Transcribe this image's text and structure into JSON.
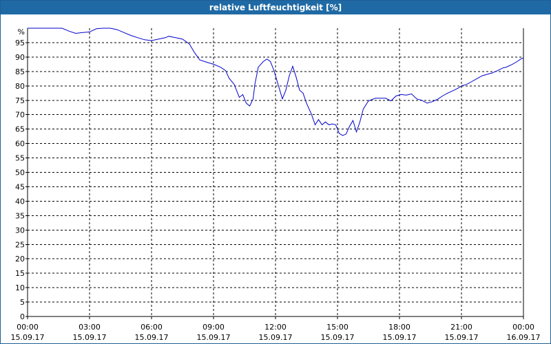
{
  "window": {
    "title": "relative Luftfeuchtigkeit [%]"
  },
  "chart_data": {
    "type": "line",
    "title": "relative Luftfeuchtigkeit [%]",
    "ylabel": "%",
    "xlabel": "",
    "ylim": [
      0,
      100
    ],
    "xlim_hours": [
      0,
      24
    ],
    "grid": true,
    "grid_style": "dashed",
    "line_color": "#0000cc",
    "y_ticks": [
      0,
      5,
      10,
      15,
      20,
      25,
      30,
      35,
      40,
      45,
      50,
      55,
      60,
      65,
      70,
      75,
      80,
      85,
      90,
      95
    ],
    "y_unit_label": "%",
    "x_ticks": [
      {
        "time": "00:00",
        "date": "15.09.17"
      },
      {
        "time": "03:00",
        "date": "15.09.17"
      },
      {
        "time": "06:00",
        "date": "15.09.17"
      },
      {
        "time": "09:00",
        "date": "15.09.17"
      },
      {
        "time": "12:00",
        "date": "15.09.17"
      },
      {
        "time": "15:00",
        "date": "15.09.17"
      },
      {
        "time": "18:00",
        "date": "15.09.17"
      },
      {
        "time": "21:00",
        "date": "15.09.17"
      },
      {
        "time": "00:00",
        "date": "16.09.17"
      }
    ],
    "series": [
      {
        "points": [
          {
            "x": "15.09.17 00:00",
            "y": 100
          },
          {
            "x": "15.09.17 01:00",
            "y": 100
          },
          {
            "x": "15.09.17 01:40",
            "y": 100
          },
          {
            "x": "15.09.17 02:00",
            "y": 99
          },
          {
            "x": "15.09.17 02:20",
            "y": 98.2
          },
          {
            "x": "15.09.17 02:40",
            "y": 98.5
          },
          {
            "x": "15.09.17 03:00",
            "y": 98.7
          },
          {
            "x": "15.09.17 03:20",
            "y": 99.8
          },
          {
            "x": "15.09.17 03:40",
            "y": 100
          },
          {
            "x": "15.09.17 04:00",
            "y": 100
          },
          {
            "x": "15.09.17 04:20",
            "y": 99.5
          },
          {
            "x": "15.09.17 04:40",
            "y": 98.5
          },
          {
            "x": "15.09.17 05:00",
            "y": 97.5
          },
          {
            "x": "15.09.17 05:20",
            "y": 96.7
          },
          {
            "x": "15.09.17 05:40",
            "y": 96
          },
          {
            "x": "15.09.17 06:00",
            "y": 95.7
          },
          {
            "x": "15.09.17 06:20",
            "y": 96.2
          },
          {
            "x": "15.09.17 06:40",
            "y": 96.7
          },
          {
            "x": "15.09.17 06:50",
            "y": 97.2
          },
          {
            "x": "15.09.17 07:10",
            "y": 96.7
          },
          {
            "x": "15.09.17 07:30",
            "y": 96.2
          },
          {
            "x": "15.09.17 07:50",
            "y": 94.5
          },
          {
            "x": "15.09.17 08:05",
            "y": 91.5
          },
          {
            "x": "15.09.17 08:20",
            "y": 89
          },
          {
            "x": "15.09.17 08:40",
            "y": 88.2
          },
          {
            "x": "15.09.17 09:00",
            "y": 87.5
          },
          {
            "x": "15.09.17 09:20",
            "y": 86.5
          },
          {
            "x": "15.09.17 09:35",
            "y": 85.3
          },
          {
            "x": "15.09.17 09:45",
            "y": 82.7
          },
          {
            "x": "15.09.17 10:00",
            "y": 80.5
          },
          {
            "x": "15.09.17 10:10",
            "y": 77.5
          },
          {
            "x": "15.09.17 10:15",
            "y": 76
          },
          {
            "x": "15.09.17 10:25",
            "y": 77
          },
          {
            "x": "15.09.17 10:35",
            "y": 74
          },
          {
            "x": "15.09.17 10:45",
            "y": 73
          },
          {
            "x": "15.09.17 10:55",
            "y": 75.5
          },
          {
            "x": "15.09.17 11:00",
            "y": 80.5
          },
          {
            "x": "15.09.17 11:10",
            "y": 86.5
          },
          {
            "x": "15.09.17 11:25",
            "y": 88.5
          },
          {
            "x": "15.09.17 11:35",
            "y": 89.3
          },
          {
            "x": "15.09.17 11:45",
            "y": 88.5
          },
          {
            "x": "15.09.17 11:55",
            "y": 85.5
          },
          {
            "x": "15.09.17 12:10",
            "y": 79.5
          },
          {
            "x": "15.09.17 12:20",
            "y": 75.5
          },
          {
            "x": "15.09.17 12:30",
            "y": 78.5
          },
          {
            "x": "15.09.17 12:40",
            "y": 83.5
          },
          {
            "x": "15.09.17 12:50",
            "y": 86.8
          },
          {
            "x": "15.09.17 13:00",
            "y": 83
          },
          {
            "x": "15.09.17 13:10",
            "y": 78.5
          },
          {
            "x": "15.09.17 13:20",
            "y": 77.5
          },
          {
            "x": "15.09.17 13:30",
            "y": 74
          },
          {
            "x": "15.09.17 13:45",
            "y": 70
          },
          {
            "x": "15.09.17 13:55",
            "y": 66.5
          },
          {
            "x": "15.09.17 14:05",
            "y": 68.3
          },
          {
            "x": "15.09.17 14:15",
            "y": 66.5
          },
          {
            "x": "15.09.17 14:25",
            "y": 67.5
          },
          {
            "x": "15.09.17 14:35",
            "y": 66.5
          },
          {
            "x": "15.09.17 14:45",
            "y": 66.8
          },
          {
            "x": "15.09.17 14:55",
            "y": 66.5
          },
          {
            "x": "15.09.17 15:05",
            "y": 63.5
          },
          {
            "x": "15.09.17 15:15",
            "y": 62.8
          },
          {
            "x": "15.09.17 15:25",
            "y": 63.3
          },
          {
            "x": "15.09.17 15:35",
            "y": 66
          },
          {
            "x": "15.09.17 15:45",
            "y": 68
          },
          {
            "x": "15.09.17 15:55",
            "y": 64
          },
          {
            "x": "15.09.17 16:05",
            "y": 67.5
          },
          {
            "x": "15.09.17 16:15",
            "y": 72
          },
          {
            "x": "15.09.17 16:30",
            "y": 74.8
          },
          {
            "x": "15.09.17 16:50",
            "y": 75.7
          },
          {
            "x": "15.09.17 17:20",
            "y": 75.7
          },
          {
            "x": "15.09.17 17:35",
            "y": 74.8
          },
          {
            "x": "15.09.17 17:50",
            "y": 76.5
          },
          {
            "x": "15.09.17 18:05",
            "y": 77
          },
          {
            "x": "15.09.17 18:20",
            "y": 76.8
          },
          {
            "x": "15.09.17 18:35",
            "y": 77.2
          },
          {
            "x": "15.09.17 18:50",
            "y": 75.5
          },
          {
            "x": "15.09.17 19:05",
            "y": 75
          },
          {
            "x": "15.09.17 19:20",
            "y": 74
          },
          {
            "x": "15.09.17 19:35",
            "y": 74.5
          },
          {
            "x": "15.09.17 19:50",
            "y": 75.3
          },
          {
            "x": "15.09.17 20:05",
            "y": 76.5
          },
          {
            "x": "15.09.17 20:20",
            "y": 77.5
          },
          {
            "x": "15.09.17 20:35",
            "y": 78.3
          },
          {
            "x": "15.09.17 20:50",
            "y": 79.2
          },
          {
            "x": "15.09.17 21:00",
            "y": 80
          },
          {
            "x": "15.09.17 21:15",
            "y": 80.5
          },
          {
            "x": "15.09.17 21:30",
            "y": 81.5
          },
          {
            "x": "15.09.17 21:45",
            "y": 82.5
          },
          {
            "x": "15.09.17 22:00",
            "y": 83.5
          },
          {
            "x": "15.09.17 22:15",
            "y": 84
          },
          {
            "x": "15.09.17 22:30",
            "y": 84.5
          },
          {
            "x": "15.09.17 22:45",
            "y": 85.3
          },
          {
            "x": "15.09.17 23:00",
            "y": 86.2
          },
          {
            "x": "15.09.17 23:10",
            "y": 86.5
          },
          {
            "x": "15.09.17 23:25",
            "y": 87.3
          },
          {
            "x": "15.09.17 23:40",
            "y": 88.3
          },
          {
            "x": "15.09.17 23:55",
            "y": 89.5
          },
          {
            "x": "16.09.17 00:00",
            "y": 89.7
          }
        ]
      }
    ]
  }
}
